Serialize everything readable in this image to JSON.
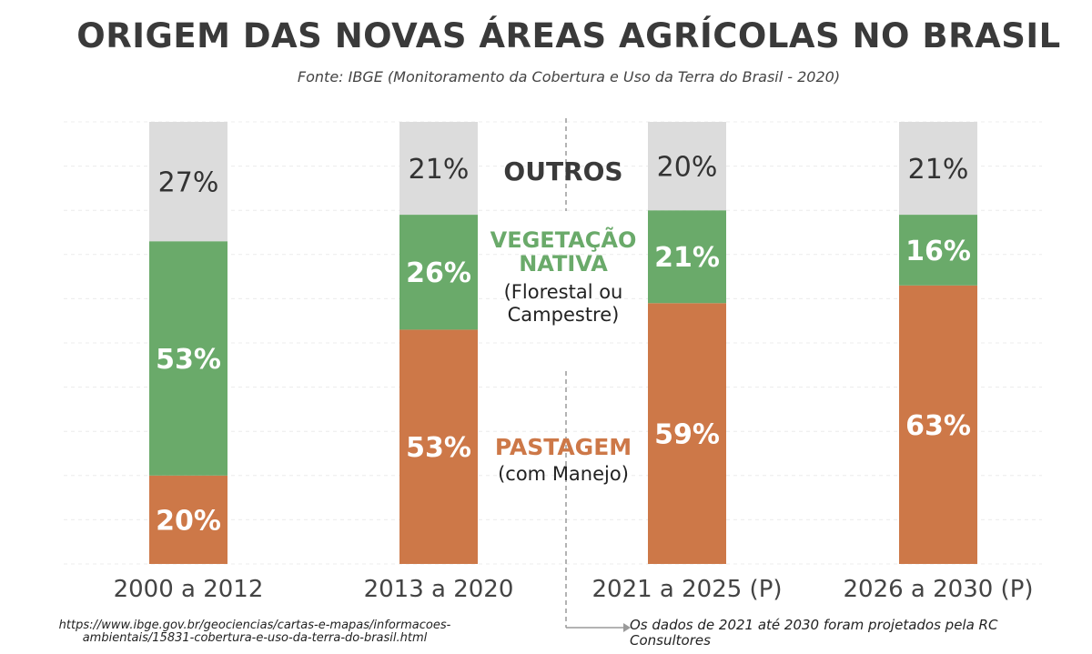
{
  "title": "ORIGEM DAS NOVAS ÁREAS AGRÍCOLAS NO BRASIL",
  "subtitle": "Fonte: IBGE (Monitoramento da Cobertura e Uso da Terra do Brasil - 2020)",
  "legend": {
    "outros": "OUTROS",
    "vegetacao_line1": "VEGETAÇÃO",
    "vegetacao_line2": "NATIVA",
    "vegetacao_sub1": "(Florestal ou",
    "vegetacao_sub2": "Campestre)",
    "pastagem": "PASTAGEM",
    "pastagem_sub": "(com Manejo)"
  },
  "footer": {
    "url": "https://www.ibge.gov.br/geociencias/cartas-e-mapas/informacoes-ambientais/15831-cobertura-e-uso-da-terra-do-brasil.html",
    "note": "Os dados de 2021 até 2030 foram projetados pela RC Consultores"
  },
  "colors": {
    "pastagem": "#cd7848",
    "vegetacao": "#6aaa6a",
    "outros": "#dcdcdc",
    "vegetacao_label": "#6aaa6a",
    "pastagem_label": "#cd7848"
  },
  "chart_data": {
    "type": "bar",
    "stacked": true,
    "unit": "%",
    "categories": [
      "2000 a 2012",
      "2013 a 2020",
      "2021 a 2025 (P)",
      "2026 a 2030 (P)"
    ],
    "series": [
      {
        "name": "PASTAGEM",
        "values": [
          20,
          53,
          59,
          63
        ]
      },
      {
        "name": "VEGETAÇÃO NATIVA",
        "values": [
          53,
          26,
          21,
          16
        ]
      },
      {
        "name": "OUTROS",
        "values": [
          27,
          21,
          20,
          21
        ]
      }
    ],
    "ylim": [
      0,
      100
    ],
    "grid": true
  }
}
